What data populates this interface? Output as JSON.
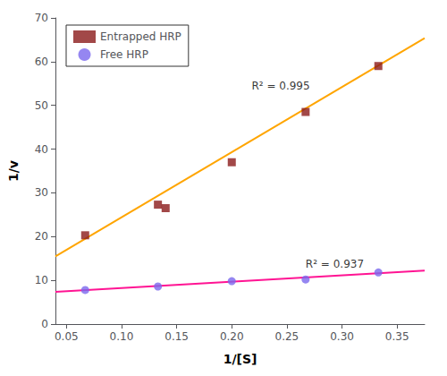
{
  "chart_data": {
    "type": "scatter",
    "xlabel": "1/[S]",
    "ylabel": "1/v",
    "xlim": [
      0.04,
      0.375
    ],
    "ylim": [
      0,
      70
    ],
    "xticks": [
      0.05,
      {
        "value": 0.1,
        "label": "0.10"
      },
      0.15,
      {
        "value": 0.2,
        "label": "0.20"
      },
      0.25,
      {
        "value": 0.3,
        "label": "0.30"
      },
      0.35
    ],
    "yticks": [
      0,
      10,
      20,
      30,
      40,
      50,
      60,
      70
    ],
    "grid": false,
    "legend": "upper left",
    "series": [
      {
        "type": "line",
        "color": "#FFA500",
        "line_style": "solid",
        "x": [
          0.04,
          0.375
        ],
        "values": [
          15.46,
          65.375
        ]
      },
      {
        "type": "line",
        "color": "#FF1493",
        "line_style": "solid",
        "x": [
          0.04,
          0.375
        ],
        "values": [
          7.38,
          12.2375
        ]
      },
      {
        "type": "scatter",
        "name": "Entrapped HRP",
        "color": "#8B1A1A",
        "marker": "square",
        "x": [
          0.067,
          0.133,
          0.14,
          0.2,
          0.267,
          0.333
        ],
        "values": [
          20.3,
          27.3,
          26.5,
          37.0,
          48.5,
          59.0
        ]
      },
      {
        "type": "scatter",
        "name": "Free HRP",
        "color": "#7B68EE",
        "marker": "circle",
        "x": [
          0.067,
          0.133,
          0.2,
          0.267,
          0.333
        ],
        "values": [
          7.8,
          8.6,
          9.8,
          10.2,
          11.8
        ]
      }
    ],
    "annotations": [
      {
        "text": "R² = 0.995",
        "x": 0.218,
        "y": 54.5
      },
      {
        "text": "R² = 0.937",
        "x": 0.267,
        "y": 13.8
      }
    ]
  }
}
